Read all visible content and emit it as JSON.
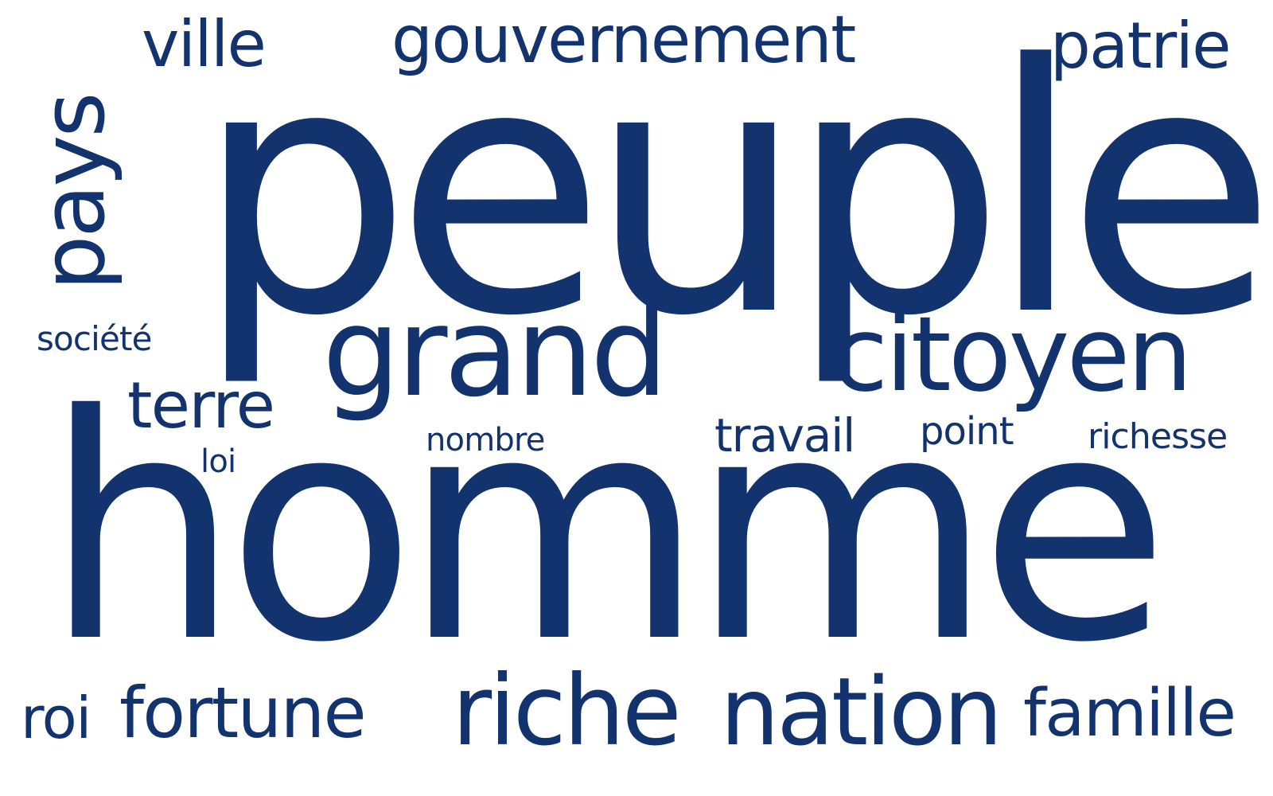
{
  "word_cloud": {
    "color": "#13336f",
    "background": "#ffffff",
    "words": {
      "homme": "homme",
      "peuple": "peuple",
      "grand": "grand",
      "citoyen": "citoyen",
      "gouvernement": "gouvernement",
      "patrie": "patrie",
      "ville": "ville",
      "pays": "pays",
      "societe": "société",
      "terre": "terre",
      "loi": "loi",
      "nombre": "nombre",
      "travail": "travail",
      "point": "point",
      "richesse": "richesse",
      "roi": "roi",
      "fortune": "fortune",
      "riche": "riche",
      "nation": "nation",
      "famille": "famille"
    }
  }
}
